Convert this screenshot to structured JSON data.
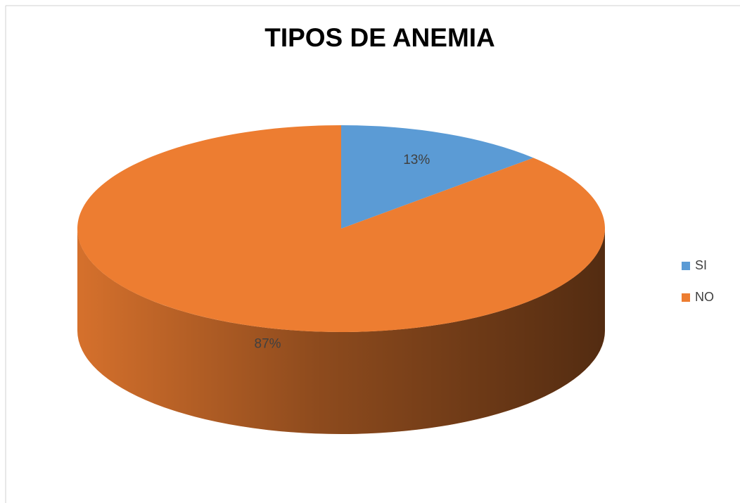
{
  "chart_data": {
    "type": "pie",
    "title": "TIPOS DE ANEMIA",
    "categories": [
      "SI",
      "NO"
    ],
    "values": [
      13,
      87
    ],
    "value_labels": [
      "13%",
      "87%"
    ],
    "colors": [
      "#5b9bd5",
      "#ed7d31"
    ],
    "legend": "right"
  }
}
